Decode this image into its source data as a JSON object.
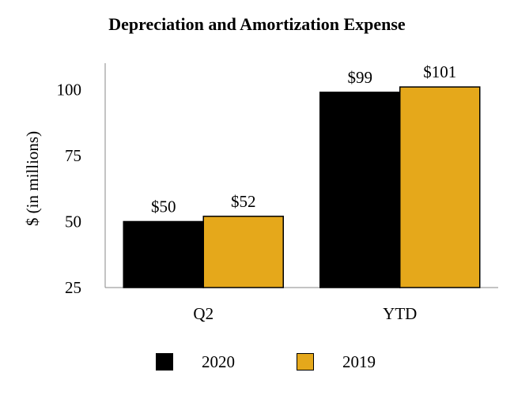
{
  "chart_data": {
    "type": "bar",
    "title": "Depreciation and Amortization Expense",
    "xlabel": "",
    "ylabel": "$ (in millions)",
    "ylim": [
      25,
      110
    ],
    "yticks": [
      25,
      50,
      75,
      100
    ],
    "categories": [
      "Q2",
      "YTD"
    ],
    "series": [
      {
        "name": "2020",
        "values": [
          50,
          99
        ],
        "labels": [
          "$50",
          "$99"
        ],
        "color": "#000000"
      },
      {
        "name": "2019",
        "values": [
          52,
          101
        ],
        "labels": [
          "$52",
          "$101"
        ],
        "color": "#E5A81B"
      }
    ],
    "grid": false,
    "legend_position": "bottom"
  }
}
